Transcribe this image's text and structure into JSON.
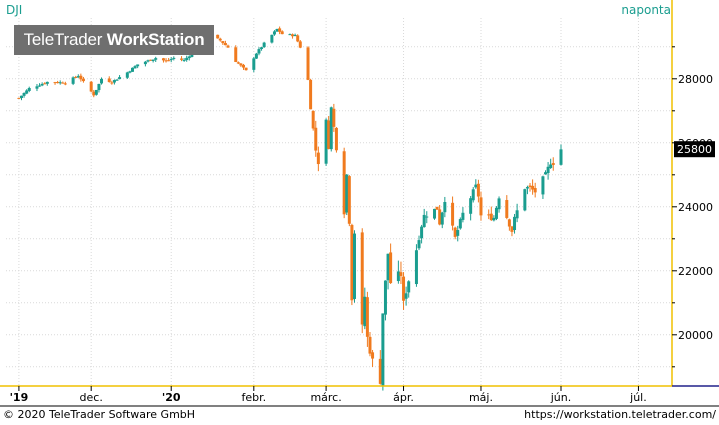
{
  "header": {
    "symbol": "DJI",
    "interval": "naponta"
  },
  "watermark": {
    "brand": "TeleTrader",
    "product": "WorkStation"
  },
  "footer": {
    "copyright": "© 2020 TeleTrader Software GmbH",
    "url": "https://workstation.teletrader.com/"
  },
  "colors": {
    "up": "#1a9d8f",
    "down": "#f07a1e",
    "axis_border": "#f0c000",
    "grid": "#d9d9d9",
    "price_tag_bg": "#000000",
    "price_tag_text": "#ffffff"
  },
  "chart_data": {
    "type": "candlestick",
    "ylim": [
      18400,
      29900
    ],
    "y_ticks": [
      20000,
      22000,
      24000,
      26000,
      28000
    ],
    "y_tick_labels": [
      "20000",
      "22000",
      "24000",
      "26000",
      "28000"
    ],
    "last_price": 25800,
    "last_price_label": "25800",
    "x_ticks": [
      {
        "label": "'19",
        "date": "2019-11-04"
      },
      {
        "label": "dec.",
        "date": "2019-12-02"
      },
      {
        "label": "'20",
        "date": "2020-01-02"
      },
      {
        "label": "febr.",
        "date": "2020-02-03"
      },
      {
        "label": "márc.",
        "date": "2020-03-02"
      },
      {
        "label": "ápr.",
        "date": "2020-04-01"
      },
      {
        "label": "máj.",
        "date": "2020-05-01"
      },
      {
        "label": "jún.",
        "date": "2020-06-01"
      },
      {
        "label": "júl.",
        "date": "2020-07-01"
      }
    ],
    "close_points": [
      [
        "2019-11-04",
        27400
      ],
      [
        "2019-11-08",
        27700
      ],
      [
        "2019-11-15",
        27900
      ],
      [
        "2019-11-22",
        27880
      ],
      [
        "2019-11-27",
        28100
      ],
      [
        "2019-12-03",
        27500
      ],
      [
        "2019-12-06",
        28000
      ],
      [
        "2019-12-10",
        27900
      ],
      [
        "2019-12-16",
        28200
      ],
      [
        "2019-12-20",
        28450
      ],
      [
        "2019-12-27",
        28650
      ],
      [
        "2019-12-31",
        28550
      ],
      [
        "2020-01-03",
        28650
      ],
      [
        "2020-01-07",
        28580
      ],
      [
        "2020-01-10",
        28800
      ],
      [
        "2020-01-17",
        29350
      ],
      [
        "2020-01-21",
        29200
      ],
      [
        "2020-01-24",
        28980
      ],
      [
        "2020-01-27",
        28550
      ],
      [
        "2020-01-31",
        28250
      ],
      [
        "2020-02-04",
        28800
      ],
      [
        "2020-02-07",
        29100
      ],
      [
        "2020-02-12",
        29550
      ],
      [
        "2020-02-14",
        29400
      ],
      [
        "2020-02-19",
        29350
      ],
      [
        "2020-02-21",
        28990
      ],
      [
        "2020-02-24",
        27960
      ],
      [
        "2020-02-25",
        27080
      ],
      [
        "2020-02-27",
        25770
      ],
      [
        "2020-02-28",
        25400
      ],
      [
        "2020-03-02",
        26700
      ],
      [
        "2020-03-03",
        25900
      ],
      [
        "2020-03-04",
        27100
      ],
      [
        "2020-03-06",
        25860
      ],
      [
        "2020-03-09",
        23850
      ],
      [
        "2020-03-10",
        25000
      ],
      [
        "2020-03-11",
        23550
      ],
      [
        "2020-03-12",
        21200
      ],
      [
        "2020-03-13",
        23200
      ],
      [
        "2020-03-16",
        20200
      ],
      [
        "2020-03-17",
        21200
      ],
      [
        "2020-03-18",
        19900
      ],
      [
        "2020-03-20",
        19170
      ],
      [
        "2020-03-23",
        18590
      ],
      [
        "2020-03-24",
        20700
      ],
      [
        "2020-03-26",
        22550
      ],
      [
        "2020-03-27",
        21640
      ],
      [
        "2020-03-31",
        21900
      ],
      [
        "2020-04-01",
        20950
      ],
      [
        "2020-04-02",
        21400
      ],
      [
        "2020-04-06",
        22680
      ],
      [
        "2020-04-08",
        23430
      ],
      [
        "2020-04-09",
        23720
      ],
      [
        "2020-04-14",
        23950
      ],
      [
        "2020-04-15",
        23500
      ],
      [
        "2020-04-17",
        24240
      ],
      [
        "2020-04-21",
        23020
      ],
      [
        "2020-04-24",
        23780
      ],
      [
        "2020-04-29",
        24630
      ],
      [
        "2020-04-30",
        24350
      ],
      [
        "2020-05-01",
        23720
      ],
      [
        "2020-05-06",
        23660
      ],
      [
        "2020-05-08",
        24330
      ],
      [
        "2020-05-13",
        23250
      ],
      [
        "2020-05-14",
        23620
      ],
      [
        "2020-05-18",
        24600
      ],
      [
        "2020-05-20",
        24580
      ],
      [
        "2020-05-22",
        24470
      ],
      [
        "2020-05-26",
        24990
      ],
      [
        "2020-05-28",
        25400
      ],
      [
        "2020-05-29",
        25380
      ],
      [
        "2020-06-01",
        25800
      ]
    ]
  }
}
